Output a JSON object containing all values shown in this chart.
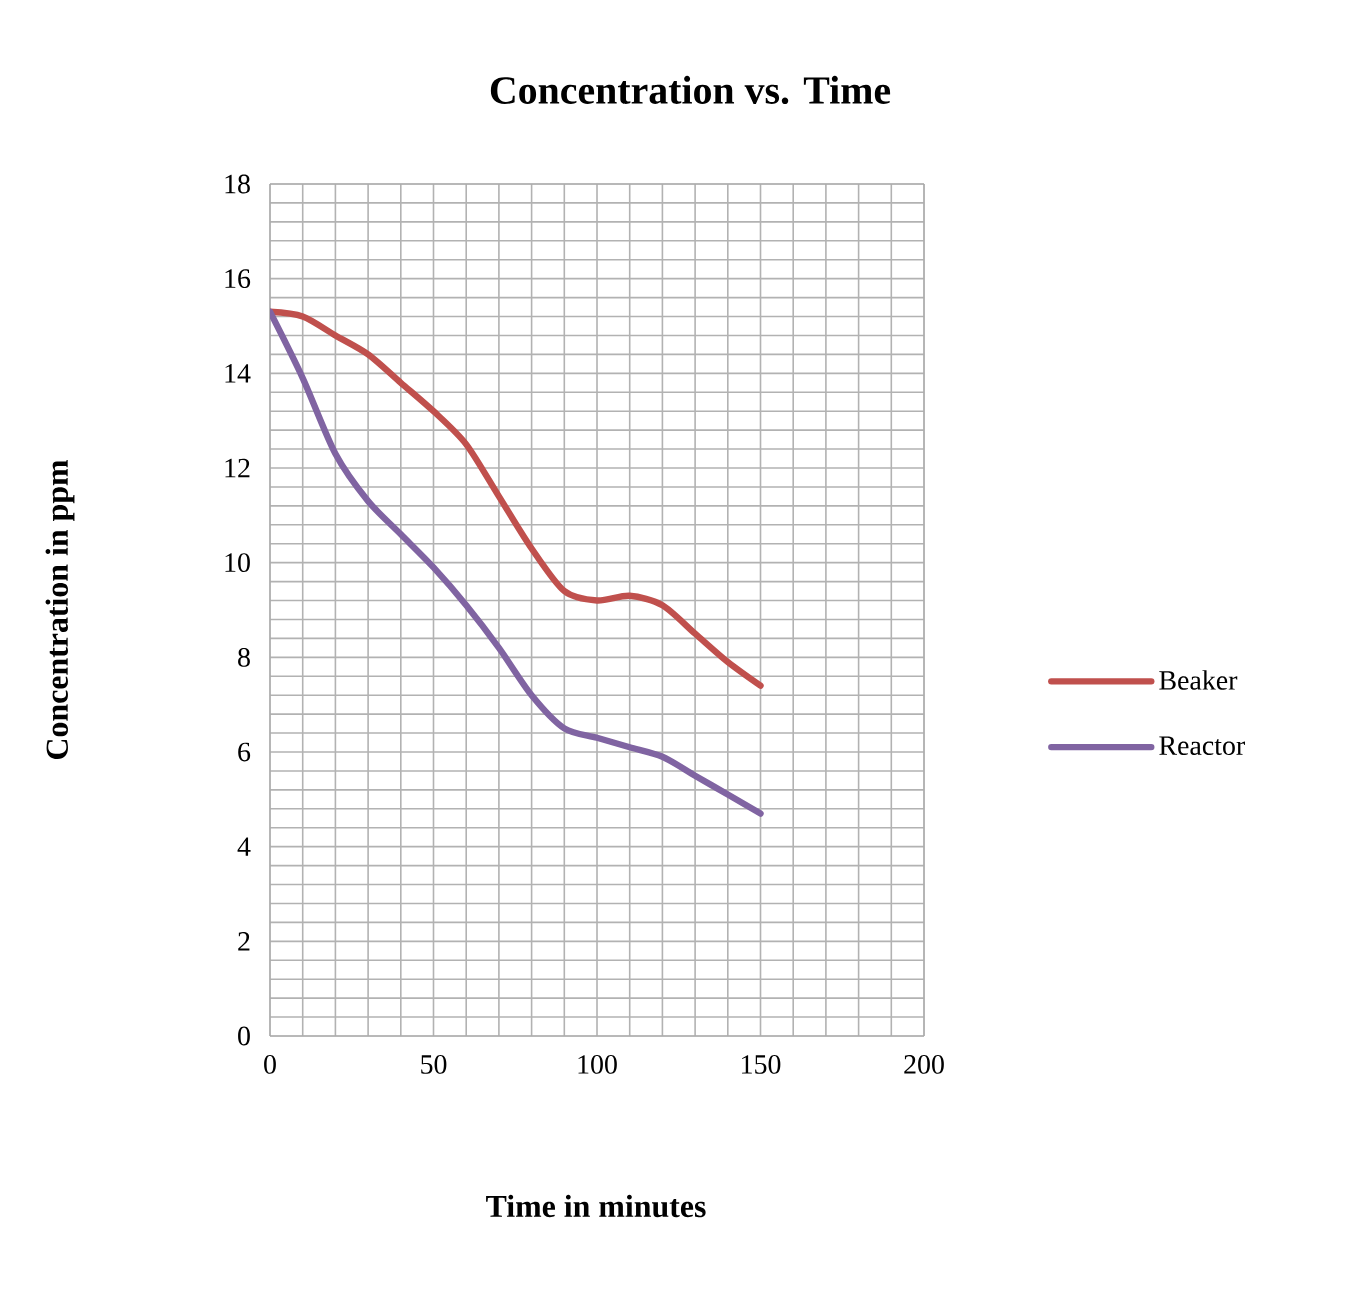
{
  "chart_data": {
    "type": "line",
    "title": "Concentration vs. Time",
    "xlabel": "Time in minutes",
    "ylabel": "Concentration in ppm",
    "x": [
      0,
      10,
      20,
      30,
      40,
      50,
      60,
      70,
      80,
      90,
      100,
      110,
      120,
      130,
      140,
      150
    ],
    "series": [
      {
        "name": "Beaker",
        "color": "#c0504d",
        "values": [
          15.3,
          15.2,
          14.8,
          14.4,
          13.8,
          13.2,
          12.5,
          11.4,
          10.3,
          9.4,
          9.2,
          9.3,
          9.1,
          8.5,
          7.9,
          7.4
        ]
      },
      {
        "name": "Reactor",
        "color": "#8064a2",
        "values": [
          15.3,
          13.9,
          12.3,
          11.3,
          10.6,
          9.9,
          9.1,
          8.2,
          7.2,
          6.5,
          6.3,
          6.1,
          5.9,
          5.5,
          5.1,
          4.7
        ]
      }
    ],
    "xlim": [
      0,
      200
    ],
    "xticks": [
      0,
      50,
      100,
      150,
      200
    ],
    "ylim": [
      0,
      18
    ],
    "yticks": [
      0,
      2,
      4,
      6,
      8,
      10,
      12,
      14,
      16,
      18
    ],
    "grid": true,
    "legend": "right",
    "marker": "none",
    "line_style": "solid"
  }
}
